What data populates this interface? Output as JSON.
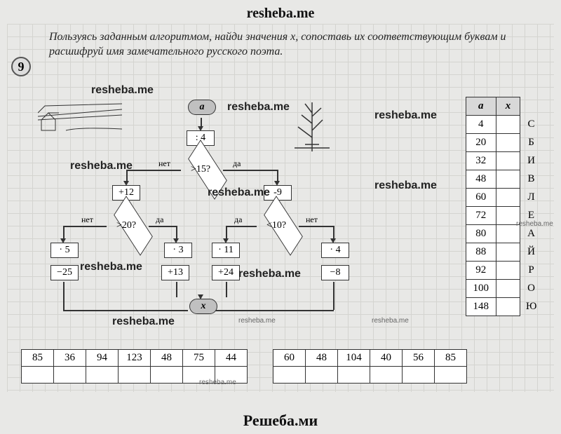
{
  "header": "resheba.me",
  "footer": "Решеба.ми",
  "problem": {
    "number": "9",
    "text": "Пользуясь заданным алгоритмом, найди значения x, сопоставь их соответствующим буквам и расшифруй имя замечательного русского поэта."
  },
  "flowchart": {
    "start": "a",
    "div": ": 4",
    "cond1": ">15?",
    "left_add": "+12",
    "cond2": ">20?",
    "cond3": "<10?",
    "right_sub": "-9",
    "l1": "· 5",
    "l2": "−25",
    "l3": "· 3",
    "l4": "+13",
    "r1": "· 11",
    "r2": "+24",
    "r3": "· 4",
    "r4": "−8",
    "end": "x",
    "yes": "да",
    "no": "нет"
  },
  "table": {
    "head_a": "a",
    "head_x": "x",
    "rows": [
      {
        "a": "4",
        "x": "",
        "l": "С"
      },
      {
        "a": "20",
        "x": "",
        "l": "Б"
      },
      {
        "a": "32",
        "x": "",
        "l": "И"
      },
      {
        "a": "48",
        "x": "",
        "l": "В"
      },
      {
        "a": "60",
        "x": "",
        "l": "Л"
      },
      {
        "a": "72",
        "x": "",
        "l": "Е"
      },
      {
        "a": "80",
        "x": "",
        "l": "А"
      },
      {
        "a": "88",
        "x": "",
        "l": "Й"
      },
      {
        "a": "92",
        "x": "",
        "l": "Р"
      },
      {
        "a": "100",
        "x": "",
        "l": "О"
      },
      {
        "a": "148",
        "x": "",
        "l": "Ю"
      }
    ]
  },
  "answer1": [
    "85",
    "36",
    "94",
    "123",
    "48",
    "75",
    "44"
  ],
  "answer2": [
    "60",
    "48",
    "104",
    "40",
    "56",
    "85"
  ],
  "watermarks": [
    "resheba.me",
    "resheba.me",
    "resheba.me",
    "resheba.me",
    "resheba.me",
    "resheba.me",
    "resheba.me",
    "resheba.me",
    "resheba.me",
    "resheba.me",
    "resheba.me"
  ]
}
